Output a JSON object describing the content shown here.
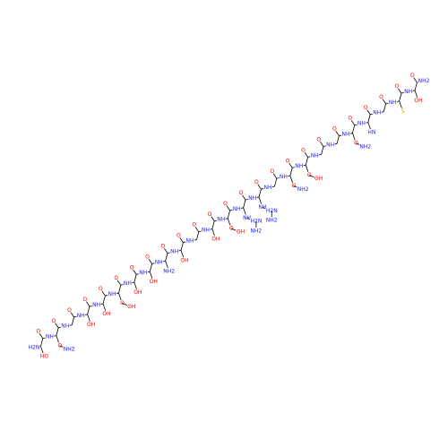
{
  "molecule": {
    "c_terminus": "NH2",
    "residues": [
      {
        "o": "O",
        "nh": "H2N",
        "side": [
          "HO"
        ]
      },
      {
        "o": "O",
        "nh": "NH",
        "side": [
          "O",
          "NH2"
        ]
      },
      {
        "o": "O",
        "nh": "NH",
        "side": []
      },
      {
        "o": "O",
        "nh": "NH",
        "side": [
          "OH"
        ]
      },
      {
        "o": "O",
        "nh": "NH",
        "side": [
          "OH"
        ]
      },
      {
        "o": "O",
        "nh": "NH",
        "side": [
          "O",
          "OH"
        ]
      },
      {
        "o": "O",
        "nh": "NH",
        "side": [
          "OH"
        ]
      },
      {
        "o": "O",
        "nh": "NH",
        "side": [
          "OH"
        ]
      },
      {
        "o": "O",
        "nh": "NH",
        "side": [
          "NH2"
        ]
      },
      {
        "o": "O",
        "nh": "NH",
        "side": [
          "OH"
        ]
      },
      {
        "o": "O",
        "nh": "NH",
        "side": []
      },
      {
        "o": "O",
        "nh": "NH",
        "side": [
          "OH"
        ]
      },
      {
        "o": "O",
        "nh": "NH",
        "side": [
          "O",
          "OH"
        ]
      },
      {
        "o": "O",
        "nh": "NH",
        "side": [
          "NH",
          "H2N",
          "NH2"
        ]
      },
      {
        "o": "O",
        "nh": "NH",
        "side": [
          "NH",
          "H2N",
          "NH2"
        ]
      },
      {
        "o": "O",
        "nh": "NH",
        "side": []
      },
      {
        "o": "O",
        "nh": "NH",
        "side": [
          "O",
          "NH2"
        ]
      },
      {
        "o": "O",
        "nh": "NH",
        "side": [
          "O",
          "OH"
        ]
      },
      {
        "o": "O",
        "nh": "NH",
        "side": []
      },
      {
        "o": "O",
        "nh": "NH",
        "side": []
      },
      {
        "o": "O",
        "nh": "NH",
        "side": [
          "O",
          "NH2"
        ]
      },
      {
        "o": "O",
        "nh": "NH",
        "side": [
          "HN"
        ]
      },
      {
        "o": "O",
        "nh": "NH",
        "side": []
      },
      {
        "o": "O",
        "nh": "NH",
        "side": [
          "S"
        ]
      },
      {
        "o": "O",
        "nh": "NH",
        "side": [
          "OH"
        ]
      }
    ]
  }
}
